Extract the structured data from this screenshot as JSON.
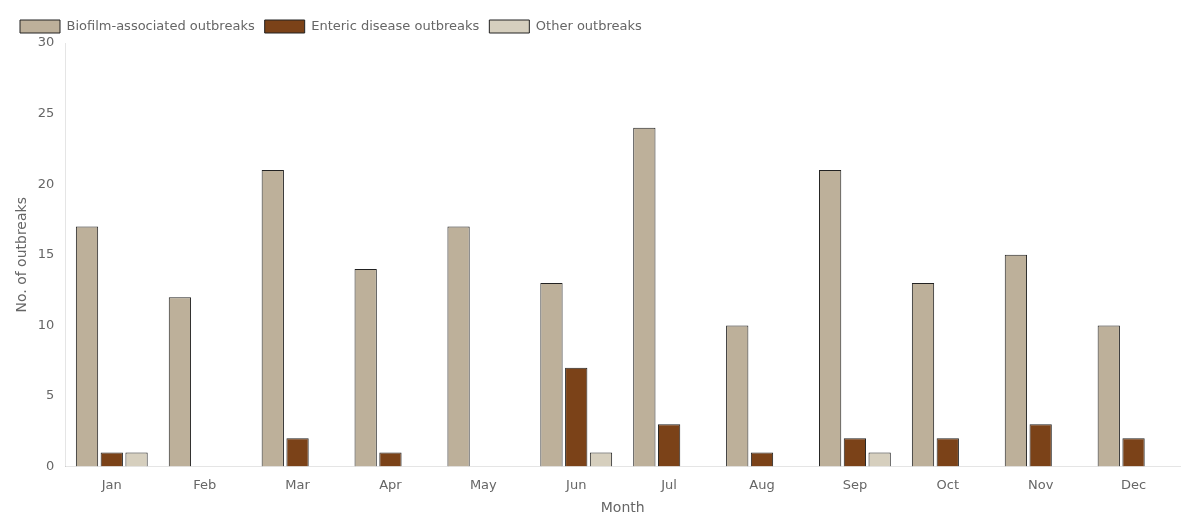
{
  "chart_data": {
    "type": "bar",
    "xlabel": "Month",
    "ylabel": "No. of outbreaks",
    "categories": [
      "Jan",
      "Feb",
      "Mar",
      "Apr",
      "May",
      "Jun",
      "Jul",
      "Aug",
      "Sep",
      "Oct",
      "Nov",
      "Dec"
    ],
    "series": [
      {
        "name": "Biofilm-associated outbreaks",
        "color": "#BDB09A",
        "values": [
          17,
          12,
          21,
          14,
          17,
          13,
          24,
          10,
          21,
          13,
          15,
          10
        ]
      },
      {
        "name": "Enteric disease outbreaks",
        "color": "#7B4218",
        "values": [
          1,
          0,
          2,
          1,
          0,
          7,
          3,
          1,
          2,
          2,
          3,
          2
        ]
      },
      {
        "name": "Other outbreaks",
        "color": "#D6CFBE",
        "values": [
          1,
          0,
          0,
          0,
          0,
          1,
          0,
          0,
          1,
          0,
          0,
          0
        ]
      }
    ],
    "ylim": [
      0,
      30
    ],
    "yticks": [
      0,
      5,
      10,
      15,
      20,
      25,
      30
    ],
    "grid": false,
    "legend": "upper left"
  }
}
